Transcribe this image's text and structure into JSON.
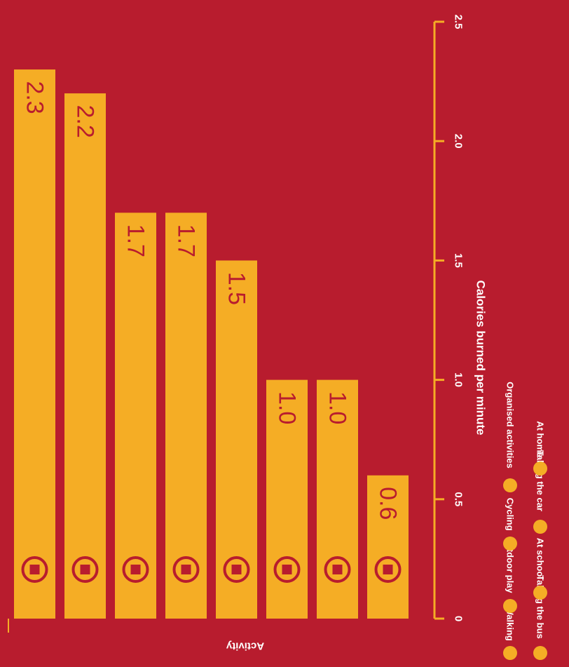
{
  "colors": {
    "background": "#b81c2e",
    "bar": "#f5ad25",
    "label": "#b81c2e",
    "axis": "#f5ad25",
    "text": "#ffffff"
  },
  "chart_data": {
    "type": "bar",
    "orientation": "horizontal",
    "rotation": "image rotated 90° clockwise",
    "categories": [
      "Walking",
      "Outdoor play",
      "Cycling",
      "Organised activities",
      "Taking the bus",
      "At school",
      "Taking the car",
      "At home"
    ],
    "icons": [
      "walking-icon",
      "outdoor-play-icon",
      "cycling-icon",
      "organised-activities-icon",
      "bus-icon",
      "school-icon",
      "car-icon",
      "home-icon"
    ],
    "values": [
      2.3,
      2.2,
      1.7,
      1.7,
      1.5,
      1.0,
      1.0,
      0.6
    ],
    "value_labels": [
      "2.3",
      "2.2",
      "1.7",
      "1.7",
      "1.5",
      "1.0",
      "1.0",
      "0.6"
    ],
    "xlabel": "Calories burned per minute",
    "ylabel": "Activity",
    "xlim": [
      0,
      2.5
    ],
    "ticks": [
      0,
      0.5,
      1.0,
      1.5,
      2.0,
      2.5
    ],
    "tick_labels": [
      "0",
      "0.5",
      "1.0",
      "1.5",
      "2.0",
      "2.5"
    ],
    "grid": false,
    "legend": {
      "placement": "bottom",
      "entries": [
        "Walking",
        "Outdoor play",
        "Cycling",
        "Organised activities",
        "Taking the bus",
        "At school",
        "Taking the car",
        "At home"
      ]
    }
  }
}
